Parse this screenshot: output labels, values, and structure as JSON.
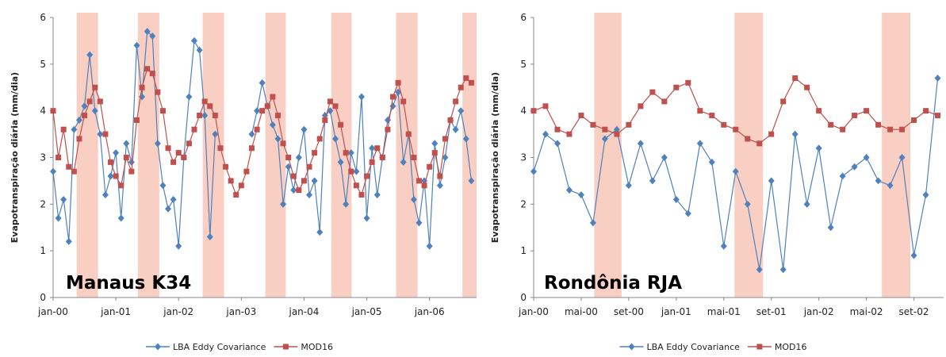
{
  "chart_data": [
    {
      "type": "line",
      "annotation": "Manaus K34",
      "y_label": "Evapotranspiração diária (mm/dia)",
      "x": [
        0,
        1,
        2,
        3,
        4,
        5,
        6,
        7,
        8,
        9,
        10,
        11,
        12,
        13,
        14,
        15,
        16,
        17,
        18,
        19,
        20,
        21,
        22,
        23,
        24,
        25,
        26,
        27,
        28,
        29,
        30,
        31,
        32,
        33,
        34,
        35,
        36,
        37,
        38,
        39,
        40,
        41,
        42,
        43,
        44,
        45,
        46,
        47,
        48,
        49,
        50,
        51,
        52,
        53,
        54,
        55,
        56,
        57,
        58,
        59,
        60,
        61,
        62,
        63,
        64,
        65,
        66,
        67,
        68,
        69,
        70,
        71,
        72,
        73,
        74,
        75,
        76,
        77,
        78,
        79,
        80
      ],
      "xlim": [
        0,
        81
      ],
      "xticks": [
        {
          "value": 0,
          "label": "jan-00"
        },
        {
          "value": 12,
          "label": "jan-01"
        },
        {
          "value": 24,
          "label": "jan-02"
        },
        {
          "value": 36,
          "label": "jan-03"
        },
        {
          "value": 48,
          "label": "jan-04"
        },
        {
          "value": 60,
          "label": "jan-05"
        },
        {
          "value": 72,
          "label": "jan-06"
        }
      ],
      "ylim": [
        0,
        6
      ],
      "yticks": [
        0,
        1,
        2,
        3,
        4,
        5,
        6
      ],
      "shaded_bands": [
        [
          4.5,
          8.6
        ],
        [
          16.2,
          20.3
        ],
        [
          28.6,
          32.7
        ],
        [
          40.6,
          44.5
        ],
        [
          53.2,
          57.1
        ],
        [
          65.6,
          69.7
        ],
        [
          78.3,
          81
        ]
      ],
      "band_color": "#f9cfc4",
      "series": [
        {
          "name": "LBA Eddy Covariance",
          "color": "#4f81bd",
          "marker": "diamond",
          "values": [
            2.7,
            1.7,
            2.1,
            1.2,
            3.6,
            3.8,
            4.1,
            5.2,
            4.0,
            3.5,
            2.2,
            2.6,
            3.1,
            1.7,
            3.3,
            2.9,
            5.4,
            4.3,
            5.7,
            5.6,
            3.3,
            2.4,
            1.9,
            2.1,
            1.1,
            3.0,
            4.3,
            5.5,
            5.3,
            3.9,
            1.3,
            3.5,
            null,
            null,
            null,
            null,
            null,
            null,
            3.5,
            4.0,
            4.6,
            4.1,
            3.7,
            3.4,
            2.0,
            2.8,
            2.3,
            3.0,
            3.6,
            2.2,
            2.5,
            1.4,
            3.9,
            4.0,
            3.4,
            2.9,
            2.0,
            3.1,
            2.7,
            4.3,
            1.7,
            3.2,
            2.2,
            3.0,
            3.8,
            4.1,
            4.4,
            2.9,
            3.5,
            2.1,
            1.6,
            2.5,
            1.1,
            3.3,
            2.4,
            3.0,
            3.8,
            3.6,
            4.0,
            3.4,
            2.5
          ]
        },
        {
          "name": "MOD16",
          "color": "#c0504d",
          "marker": "square",
          "values": [
            4.0,
            3.0,
            3.6,
            2.8,
            2.7,
            3.4,
            3.9,
            4.2,
            4.5,
            4.2,
            3.5,
            2.9,
            2.6,
            2.4,
            3.0,
            2.7,
            3.8,
            4.5,
            4.9,
            4.8,
            4.4,
            4.0,
            3.2,
            2.9,
            3.1,
            3.0,
            3.3,
            3.6,
            3.9,
            4.2,
            4.1,
            3.9,
            3.2,
            2.8,
            2.5,
            2.2,
            2.4,
            2.7,
            3.2,
            3.6,
            4.0,
            4.1,
            4.3,
            3.9,
            3.3,
            3.0,
            2.6,
            2.3,
            2.5,
            2.8,
            3.1,
            3.4,
            3.8,
            4.2,
            4.1,
            3.7,
            3.1,
            2.7,
            2.4,
            2.2,
            2.6,
            2.9,
            3.2,
            3.0,
            3.6,
            4.3,
            4.6,
            4.2,
            3.5,
            3.0,
            2.5,
            2.4,
            2.8,
            3.1,
            2.6,
            3.4,
            3.8,
            4.2,
            4.5,
            4.7,
            4.6
          ]
        }
      ]
    },
    {
      "type": "line",
      "annotation": "Rondônia RJA",
      "y_label": "Evapotranspiração diária (mm/dia)",
      "x": [
        0,
        1,
        2,
        3,
        4,
        5,
        6,
        7,
        8,
        9,
        10,
        11,
        12,
        13,
        14,
        15,
        16,
        17,
        18,
        19,
        20,
        21,
        22,
        23,
        24,
        25,
        26,
        27,
        28,
        29,
        30,
        31,
        32,
        33,
        34
      ],
      "xlim": [
        0,
        34.5
      ],
      "xticks": [
        {
          "value": 0,
          "label": "jan-00"
        },
        {
          "value": 4,
          "label": "mai-00"
        },
        {
          "value": 8,
          "label": "set-00"
        },
        {
          "value": 12,
          "label": "jan-01"
        },
        {
          "value": 16,
          "label": "mai-01"
        },
        {
          "value": 20,
          "label": "set-01"
        },
        {
          "value": 24,
          "label": "jan-02"
        },
        {
          "value": 28,
          "label": "mai-02"
        },
        {
          "value": 32,
          "label": "set-02"
        }
      ],
      "ylim": [
        0,
        6
      ],
      "yticks": [
        0,
        1,
        2,
        3,
        4,
        5,
        6
      ],
      "shaded_bands": [
        [
          5.1,
          7.4
        ],
        [
          16.9,
          19.3
        ],
        [
          29.3,
          31.7
        ]
      ],
      "band_color": "#f9cfc4",
      "series": [
        {
          "name": "LBA Eddy Covariance",
          "color": "#4f81bd",
          "marker": "diamond",
          "values": [
            2.7,
            3.5,
            3.3,
            2.3,
            2.2,
            1.6,
            3.4,
            3.6,
            2.4,
            3.3,
            2.5,
            3.0,
            2.1,
            1.8,
            3.3,
            2.9,
            1.1,
            2.7,
            2.0,
            0.6,
            2.5,
            0.6,
            3.5,
            2.0,
            3.2,
            1.5,
            2.6,
            2.8,
            3.0,
            2.5,
            2.4,
            3.0,
            0.9,
            2.2,
            4.7
          ]
        },
        {
          "name": "MOD16",
          "color": "#c0504d",
          "marker": "square",
          "values": [
            4.0,
            4.1,
            3.6,
            3.5,
            3.9,
            3.7,
            3.6,
            3.5,
            3.7,
            4.1,
            4.4,
            4.2,
            4.5,
            4.6,
            4.0,
            3.9,
            3.7,
            3.6,
            3.4,
            3.3,
            3.5,
            4.2,
            4.7,
            4.5,
            4.0,
            3.7,
            3.6,
            3.9,
            4.0,
            3.7,
            3.6,
            3.6,
            3.8,
            4.0,
            3.9
          ]
        }
      ]
    }
  ]
}
